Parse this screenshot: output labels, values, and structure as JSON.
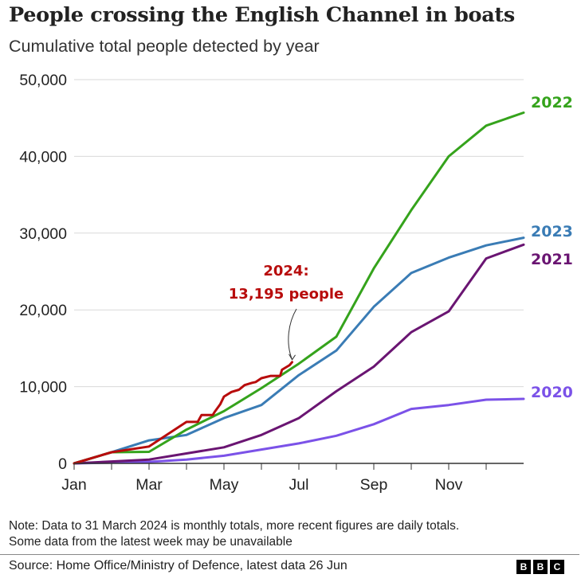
{
  "header": {
    "title": "People crossing the English Channel in boats",
    "subtitle": "Cumulative total people detected by year"
  },
  "footer": {
    "note_line1": "Note: Data to 31 March 2024 is monthly totals, more recent figures are daily totals.",
    "note_line2": "Some data from the latest week may be unavailable",
    "source": "Source: Home Office/Ministry of Defence, latest data 26 Jun",
    "logo_letters": [
      "B",
      "B",
      "C"
    ]
  },
  "chart_data": {
    "type": "line",
    "title": "People crossing the English Channel in boats",
    "subtitle": "Cumulative total people detected by year",
    "xlabel": "",
    "ylabel": "",
    "x_unit": "month index from 1 Jan (0) to 31 Dec (12)",
    "xlim": [
      0,
      12
    ],
    "ylim": [
      0,
      50000
    ],
    "grid": true,
    "y_ticks": [
      0,
      10000,
      20000,
      30000,
      40000,
      50000
    ],
    "y_tick_labels": [
      "0",
      "10,000",
      "20,000",
      "30,000",
      "40,000",
      "50,000"
    ],
    "x_tick_positions": [
      0,
      1,
      2,
      3,
      4,
      5,
      6,
      7,
      8,
      9,
      10,
      11
    ],
    "x_tick_labels": [
      {
        "pos": 0,
        "label": "Jan"
      },
      {
        "pos": 2,
        "label": "Mar"
      },
      {
        "pos": 4,
        "label": "May"
      },
      {
        "pos": 6,
        "label": "Jul"
      },
      {
        "pos": 8,
        "label": "Sep"
      },
      {
        "pos": 10,
        "label": "Nov"
      }
    ],
    "series": [
      {
        "name": "2020",
        "label": "2020",
        "color": "#7b52e8",
        "x": [
          0,
          1,
          2,
          3,
          4,
          5,
          6,
          7,
          8,
          9,
          10,
          11,
          12
        ],
        "values": [
          0,
          100,
          200,
          500,
          1000,
          1800,
          2600,
          3600,
          5100,
          7100,
          7600,
          8300,
          8400
        ]
      },
      {
        "name": "2021",
        "label": "2021",
        "color": "#6a1572",
        "x": [
          0,
          1,
          2,
          3,
          4,
          5,
          6,
          7,
          8,
          9,
          10,
          11,
          12
        ],
        "values": [
          0,
          250,
          500,
          1300,
          2100,
          3700,
          5900,
          9400,
          12600,
          17100,
          19800,
          26700,
          28500
        ]
      },
      {
        "name": "2022",
        "label": "2022",
        "color": "#35a31c",
        "x": [
          0,
          1,
          2,
          3,
          4,
          5,
          6,
          7,
          8,
          9,
          10,
          11,
          12
        ],
        "values": [
          0,
          1450,
          1500,
          4400,
          6800,
          9800,
          13000,
          16500,
          25400,
          33000,
          40000,
          44000,
          45700
        ]
      },
      {
        "name": "2023",
        "label": "2023",
        "color": "#3a7cb5",
        "x": [
          0,
          1,
          2,
          3,
          4,
          5,
          6,
          7,
          8,
          9,
          10,
          11,
          12
        ],
        "values": [
          0,
          1450,
          3000,
          3700,
          5900,
          7600,
          11500,
          14700,
          20400,
          24800,
          26800,
          28400,
          29400
        ]
      },
      {
        "name": "2024",
        "label": "2024",
        "color": "#b80c0c",
        "x": [
          0,
          1,
          2,
          3,
          3.3,
          3.4,
          3.7,
          3.75,
          3.9,
          4.0,
          4.2,
          4.4,
          4.55,
          4.75,
          4.85,
          5.0,
          5.25,
          5.5,
          5.55,
          5.75,
          5.82
        ],
        "values": [
          0,
          1450,
          2200,
          5400,
          5400,
          6300,
          6300,
          6700,
          7700,
          8700,
          9300,
          9600,
          10200,
          10500,
          10600,
          11100,
          11400,
          11400,
          12200,
          12800,
          13195
        ]
      }
    ],
    "annotations": [
      {
        "series": "2024",
        "line1": "2024:",
        "line2": "13,195 people",
        "x": 5.82,
        "y": 13195,
        "color": "#b80c0c"
      }
    ]
  }
}
